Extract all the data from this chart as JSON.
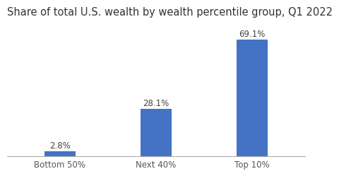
{
  "title": "Share of total U.S. wealth by wealth percentile group, Q1 2022",
  "categories": [
    "Bottom 50%",
    "Next 40%",
    "Top 10%"
  ],
  "values": [
    2.8,
    28.1,
    69.1
  ],
  "labels": [
    "2.8%",
    "28.1%",
    "69.1%"
  ],
  "bar_color": "#4472C4",
  "background_color": "#ffffff",
  "title_fontsize": 10.5,
  "label_fontsize": 8.5,
  "tick_fontsize": 8.5,
  "ylim": [
    0,
    78
  ],
  "bar_width": 0.32,
  "x_positions": [
    0,
    1,
    2
  ]
}
